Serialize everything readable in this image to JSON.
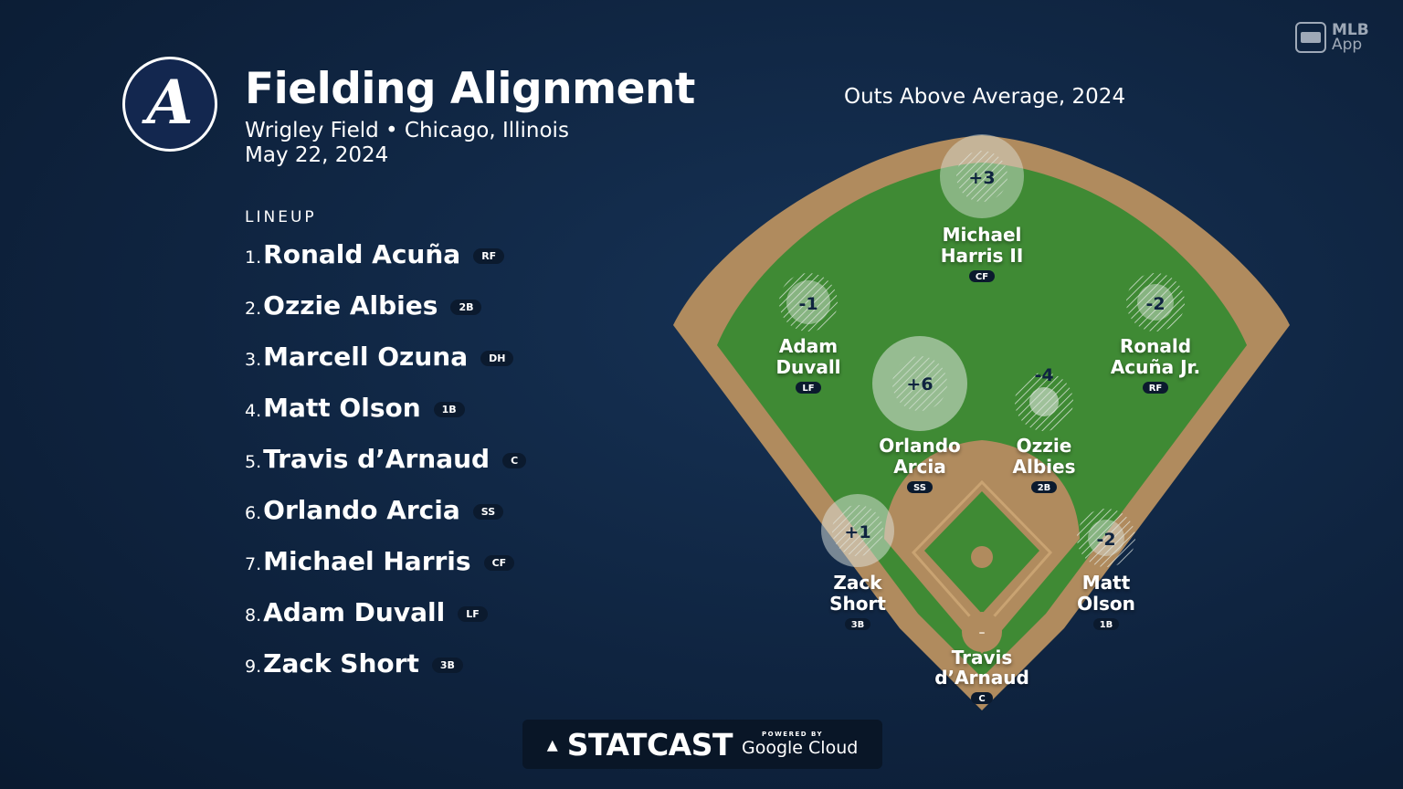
{
  "header": {
    "title": "Fielding Alignment",
    "venue": "Wrigley Field • Chicago, Illinois",
    "date": "May 22, 2024",
    "team_logo_letter": "A"
  },
  "lineup": {
    "label": "LINEUP",
    "players": [
      {
        "num": "1.",
        "name": "Ronald Acuña",
        "pos": "RF"
      },
      {
        "num": "2.",
        "name": "Ozzie Albies",
        "pos": "2B"
      },
      {
        "num": "3.",
        "name": "Marcell Ozuna",
        "pos": "DH"
      },
      {
        "num": "4.",
        "name": "Matt Olson",
        "pos": "1B"
      },
      {
        "num": "5.",
        "name": "Travis d’Arnaud",
        "pos": "C"
      },
      {
        "num": "6.",
        "name": "Orlando Arcia",
        "pos": "SS"
      },
      {
        "num": "7.",
        "name": "Michael Harris",
        "pos": "CF"
      },
      {
        "num": "8.",
        "name": "Adam Duvall",
        "pos": "LF"
      },
      {
        "num": "9.",
        "name": "Zack Short",
        "pos": "3B"
      }
    ]
  },
  "field": {
    "title": "Outs Above Average, 2024",
    "colors": {
      "grass": "#3f8a34",
      "dirt": "#b08b5e",
      "marker": "#dfe6df"
    },
    "fielders": [
      {
        "id": "cf",
        "line1": "Michael",
        "line2": "Harris II",
        "pos": "CF",
        "oaa": "+3",
        "oaa_value": 3
      },
      {
        "id": "lf",
        "line1": "Adam",
        "line2": "Duvall",
        "pos": "LF",
        "oaa": "-1",
        "oaa_value": -1
      },
      {
        "id": "rf",
        "line1": "Ronald",
        "line2": "Acuña Jr.",
        "pos": "RF",
        "oaa": "-2",
        "oaa_value": -2
      },
      {
        "id": "ss",
        "line1": "Orlando",
        "line2": "Arcia",
        "pos": "SS",
        "oaa": "+6",
        "oaa_value": 6
      },
      {
        "id": "2b",
        "line1": "Ozzie",
        "line2": "Albies",
        "pos": "2B",
        "oaa": "-4",
        "oaa_value": -4
      },
      {
        "id": "3b",
        "line1": "Zack",
        "line2": "Short",
        "pos": "3B",
        "oaa": "+1",
        "oaa_value": 1
      },
      {
        "id": "1b",
        "line1": "Matt",
        "line2": "Olson",
        "pos": "1B",
        "oaa": "-2",
        "oaa_value": -2
      },
      {
        "id": "c",
        "line1": "Travis",
        "line2": "d’Arnaud",
        "pos": "C",
        "oaa": "–",
        "oaa_value": null
      }
    ]
  },
  "branding": {
    "app_line1": "MLB",
    "app_line2": "App",
    "statcast": "STATCAST",
    "powered_by": "POWERED BY",
    "google_cloud": "Google Cloud"
  }
}
